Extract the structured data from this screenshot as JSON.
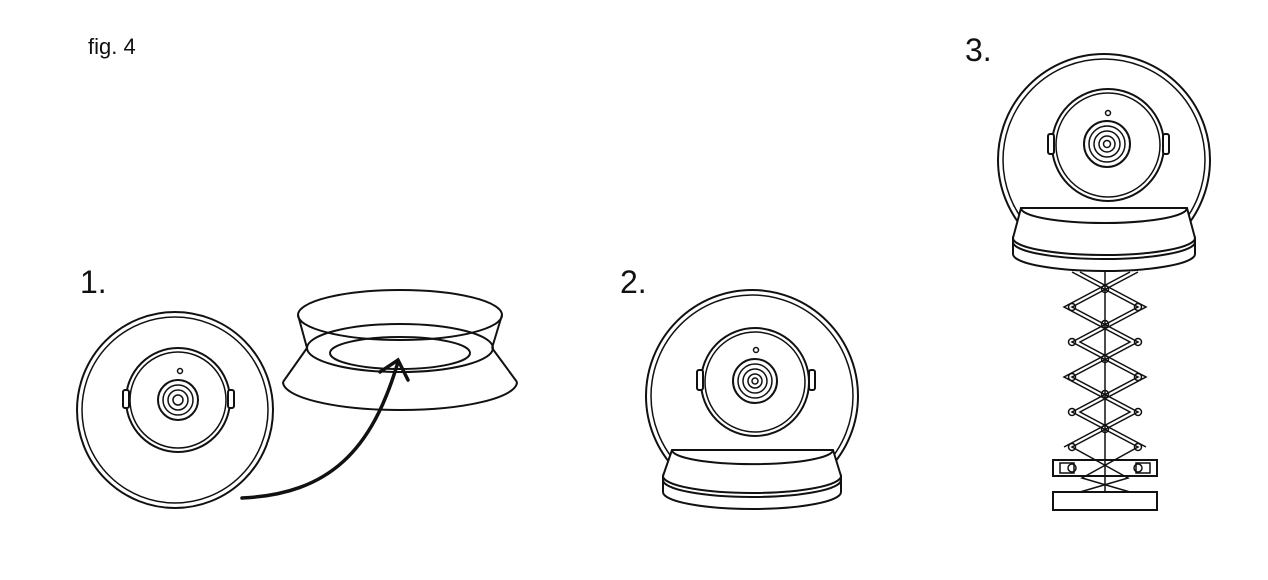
{
  "figure": {
    "label": "fig. 4",
    "steps": [
      {
        "label": "1."
      },
      {
        "label": "2."
      },
      {
        "label": "3."
      }
    ]
  }
}
